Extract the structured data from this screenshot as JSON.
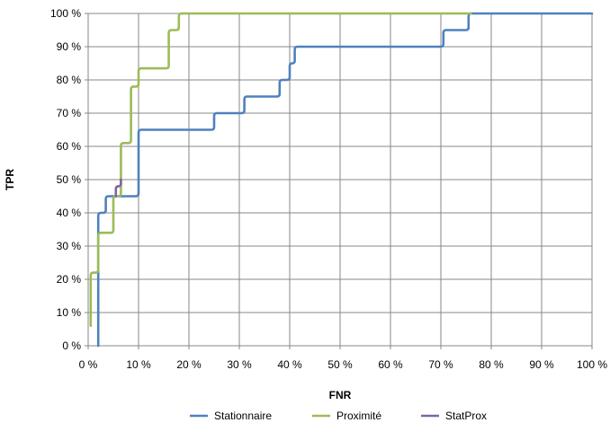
{
  "chart_data": {
    "type": "line",
    "title": "",
    "xlabel": "FNR",
    "ylabel": "TPR",
    "xlim": [
      0,
      100
    ],
    "ylim": [
      0,
      100
    ],
    "x_ticks": [
      "0 %",
      "10 %",
      "20 %",
      "30 %",
      "40 %",
      "50 %",
      "60 %",
      "70 %",
      "80 %",
      "90 %",
      "100 %"
    ],
    "y_ticks": [
      "0 %",
      "10 %",
      "20 %",
      "30 %",
      "40 %",
      "50 %",
      "60 %",
      "70 %",
      "80 %",
      "90 %",
      "100 %"
    ],
    "grid": true,
    "legend_position": "bottom",
    "series": [
      {
        "name": "Stationnaire",
        "color": "#4F81BD",
        "points": [
          [
            2,
            0
          ],
          [
            2,
            25
          ],
          [
            2,
            40
          ],
          [
            3.5,
            40
          ],
          [
            3.5,
            45
          ],
          [
            10,
            45
          ],
          [
            10,
            65
          ],
          [
            25,
            65
          ],
          [
            25,
            70
          ],
          [
            31,
            70
          ],
          [
            31,
            75
          ],
          [
            38,
            75
          ],
          [
            38,
            80
          ],
          [
            40,
            80
          ],
          [
            40,
            85
          ],
          [
            41,
            85
          ],
          [
            41,
            90
          ],
          [
            70.5,
            90
          ],
          [
            70.5,
            95
          ],
          [
            75.5,
            95
          ],
          [
            75.5,
            100
          ],
          [
            100,
            100
          ]
        ]
      },
      {
        "name": "Proximité",
        "color": "#9BBB59",
        "points": [
          [
            0.5,
            6
          ],
          [
            0.5,
            22
          ],
          [
            2,
            22
          ],
          [
            2,
            34
          ],
          [
            5,
            34
          ],
          [
            5,
            45
          ],
          [
            6.5,
            45
          ],
          [
            6.5,
            61
          ],
          [
            8.5,
            61
          ],
          [
            8.5,
            78
          ],
          [
            10,
            78
          ],
          [
            10,
            83.5
          ],
          [
            16,
            83.5
          ],
          [
            16,
            95
          ],
          [
            18,
            95
          ],
          [
            18,
            100
          ],
          [
            76,
            100
          ]
        ]
      },
      {
        "name": "StatProx",
        "color": "#8064A2",
        "points": [
          [
            5.5,
            45
          ],
          [
            5.5,
            48
          ],
          [
            6.5,
            48
          ],
          [
            6.5,
            50
          ]
        ]
      }
    ]
  }
}
